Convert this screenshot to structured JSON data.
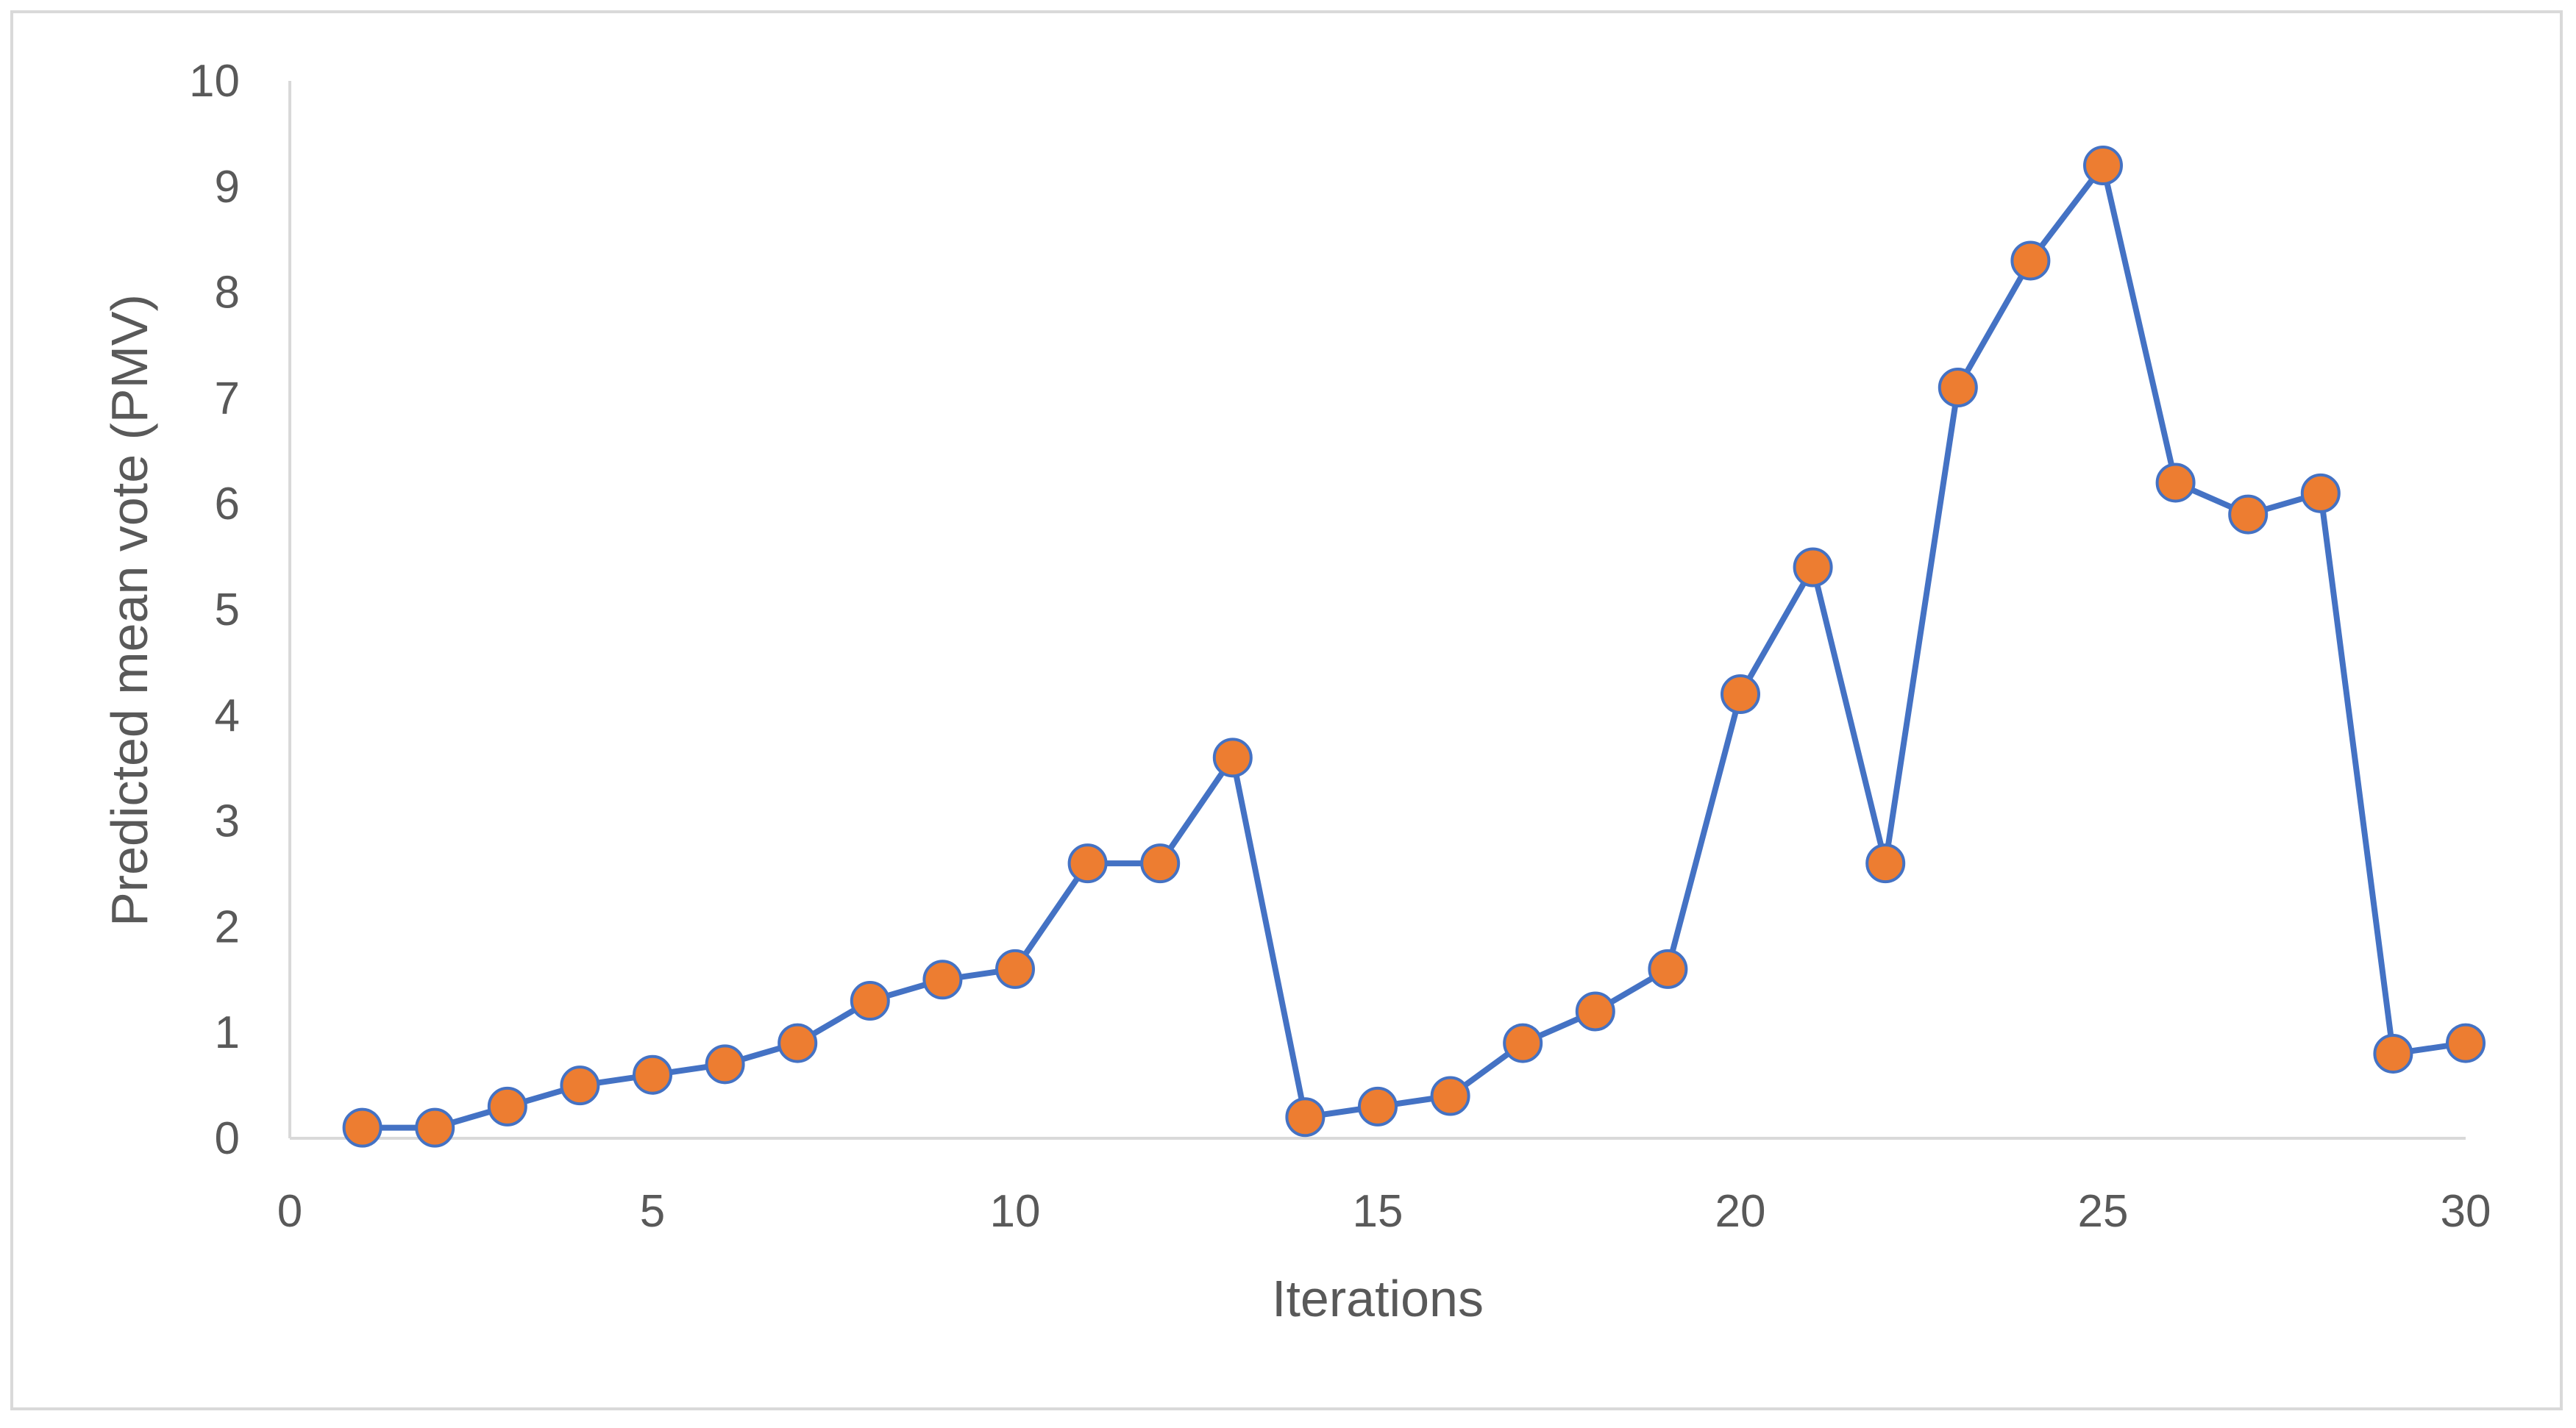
{
  "chart_data": {
    "type": "scatter",
    "title": "",
    "xlabel": "Iterations",
    "ylabel": "Predicted mean vote (PMV)",
    "xlim": [
      0,
      30
    ],
    "ylim": [
      0,
      10
    ],
    "x_ticks": [
      "0",
      "5",
      "10",
      "15",
      "20",
      "25",
      "30"
    ],
    "y_ticks": [
      "0",
      "1",
      "2",
      "3",
      "4",
      "5",
      "6",
      "7",
      "8",
      "9",
      "10"
    ],
    "grid": false,
    "legend": "none",
    "series": [
      {
        "line_color": "#4472c4",
        "marker_color": "#ed7d31",
        "marker_edge_color": "#4472c4",
        "points": [
          {
            "x": 1,
            "y": 0.1
          },
          {
            "x": 2,
            "y": 0.1
          },
          {
            "x": 3,
            "y": 0.3
          },
          {
            "x": 4,
            "y": 0.5
          },
          {
            "x": 5,
            "y": 0.6
          },
          {
            "x": 6,
            "y": 0.7
          },
          {
            "x": 7,
            "y": 0.9
          },
          {
            "x": 8,
            "y": 1.3
          },
          {
            "x": 9,
            "y": 1.5
          },
          {
            "x": 10,
            "y": 1.6
          },
          {
            "x": 11,
            "y": 2.6
          },
          {
            "x": 12,
            "y": 2.6
          },
          {
            "x": 13,
            "y": 3.6
          },
          {
            "x": 14,
            "y": 0.2
          },
          {
            "x": 15,
            "y": 0.3
          },
          {
            "x": 16,
            "y": 0.4
          },
          {
            "x": 17,
            "y": 0.9
          },
          {
            "x": 18,
            "y": 1.2
          },
          {
            "x": 19,
            "y": 1.6
          },
          {
            "x": 20,
            "y": 4.2
          },
          {
            "x": 21,
            "y": 5.4
          },
          {
            "x": 22,
            "y": 2.6
          },
          {
            "x": 23,
            "y": 7.1
          },
          {
            "x": 24,
            "y": 8.3
          },
          {
            "x": 25,
            "y": 9.2
          },
          {
            "x": 26,
            "y": 6.2
          },
          {
            "x": 27,
            "y": 5.9
          },
          {
            "x": 28,
            "y": 6.1
          },
          {
            "x": 29,
            "y": 0.8
          },
          {
            "x": 30,
            "y": 0.9
          }
        ]
      }
    ],
    "colors": {
      "axis": "#d9d9d9",
      "text": "#595959",
      "frame": "#d9d9d9"
    }
  }
}
